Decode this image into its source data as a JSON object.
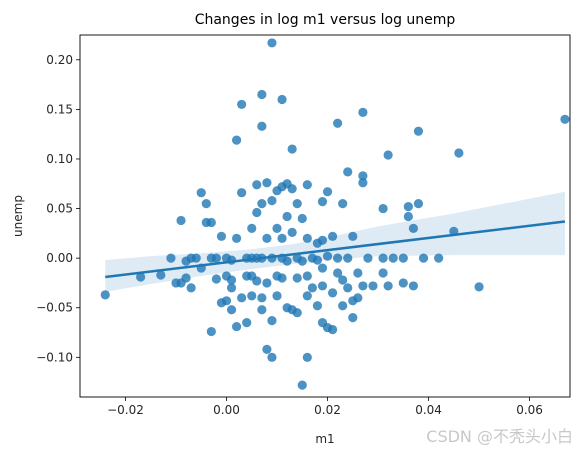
{
  "chart_data": {
    "type": "scatter",
    "title": "Changes in log m1 versus log unemp",
    "xlabel": "m1",
    "ylabel": "unemp",
    "xlim": [
      -0.029,
      0.068
    ],
    "ylim": [
      -0.14,
      0.225
    ],
    "xticks": [
      -0.02,
      0.0,
      0.02,
      0.04,
      0.06
    ],
    "xtick_labels": [
      "−0.02",
      "0.00",
      "0.02",
      "0.04",
      "0.06"
    ],
    "yticks": [
      -0.1,
      -0.05,
      0.0,
      0.05,
      0.1,
      0.15,
      0.2
    ],
    "ytick_labels": [
      "−0.10",
      "−0.05",
      "0.00",
      "0.05",
      "0.10",
      "0.15",
      "0.20"
    ],
    "grid": false,
    "point_color": "#1f77b4",
    "regression_line": {
      "x": [
        -0.024,
        0.067
      ],
      "y": [
        -0.019,
        0.037
      ]
    },
    "confidence_band": {
      "x": [
        -0.024,
        -0.015,
        -0.005,
        0.005,
        0.013,
        0.02,
        0.03,
        0.045,
        0.067
      ],
      "upper": [
        -0.002,
        0.002,
        0.005,
        0.009,
        0.014,
        0.021,
        0.032,
        0.045,
        0.067
      ],
      "lower": [
        -0.034,
        -0.026,
        -0.018,
        -0.011,
        -0.006,
        -0.002,
        0.002,
        0.003,
        0.003
      ]
    },
    "points": [
      [
        -0.024,
        -0.037
      ],
      [
        -0.017,
        -0.019
      ],
      [
        -0.013,
        -0.017
      ],
      [
        -0.011,
        0.0
      ],
      [
        -0.01,
        -0.025
      ],
      [
        -0.009,
        0.038
      ],
      [
        -0.009,
        -0.025
      ],
      [
        -0.008,
        -0.003
      ],
      [
        -0.008,
        -0.02
      ],
      [
        -0.007,
        0.0
      ],
      [
        -0.007,
        -0.03
      ],
      [
        -0.006,
        0.0
      ],
      [
        -0.005,
        0.066
      ],
      [
        -0.005,
        -0.01
      ],
      [
        -0.004,
        0.055
      ],
      [
        -0.004,
        0.036
      ],
      [
        -0.003,
        0.036
      ],
      [
        -0.003,
        0.0
      ],
      [
        -0.003,
        -0.074
      ],
      [
        -0.002,
        -0.021
      ],
      [
        -0.002,
        0.0
      ],
      [
        -0.001,
        0.022
      ],
      [
        -0.001,
        -0.045
      ],
      [
        0.0,
        0.0
      ],
      [
        0.0,
        -0.018
      ],
      [
        0.0,
        -0.043
      ],
      [
        0.001,
        -0.022
      ],
      [
        0.001,
        -0.002
      ],
      [
        0.001,
        -0.03
      ],
      [
        0.001,
        -0.052
      ],
      [
        0.002,
        0.119
      ],
      [
        0.002,
        0.02
      ],
      [
        0.002,
        -0.069
      ],
      [
        0.003,
        0.155
      ],
      [
        0.003,
        0.066
      ],
      [
        0.003,
        -0.04
      ],
      [
        0.004,
        -0.018
      ],
      [
        0.004,
        0.0
      ],
      [
        0.004,
        -0.065
      ],
      [
        0.005,
        0.03
      ],
      [
        0.005,
        0.0
      ],
      [
        0.005,
        -0.018
      ],
      [
        0.005,
        -0.038
      ],
      [
        0.006,
        0.074
      ],
      [
        0.006,
        0.046
      ],
      [
        0.006,
        0.0
      ],
      [
        0.006,
        -0.023
      ],
      [
        0.007,
        0.165
      ],
      [
        0.007,
        0.133
      ],
      [
        0.007,
        0.055
      ],
      [
        0.007,
        0.0
      ],
      [
        0.007,
        -0.04
      ],
      [
        0.007,
        -0.052
      ],
      [
        0.008,
        0.076
      ],
      [
        0.008,
        0.02
      ],
      [
        0.008,
        -0.025
      ],
      [
        0.008,
        -0.092
      ],
      [
        0.009,
        0.217
      ],
      [
        0.009,
        0.058
      ],
      [
        0.009,
        0.0
      ],
      [
        0.009,
        -0.063
      ],
      [
        0.009,
        -0.1
      ],
      [
        0.01,
        0.068
      ],
      [
        0.01,
        0.03
      ],
      [
        0.01,
        -0.018
      ],
      [
        0.01,
        -0.038
      ],
      [
        0.011,
        0.16
      ],
      [
        0.011,
        0.072
      ],
      [
        0.011,
        0.02
      ],
      [
        0.011,
        0.0
      ],
      [
        0.011,
        -0.02
      ],
      [
        0.012,
        0.075
      ],
      [
        0.012,
        0.042
      ],
      [
        0.012,
        -0.003
      ],
      [
        0.012,
        -0.05
      ],
      [
        0.013,
        0.11
      ],
      [
        0.013,
        0.07
      ],
      [
        0.013,
        0.026
      ],
      [
        0.013,
        -0.052
      ],
      [
        0.014,
        0.055
      ],
      [
        0.014,
        0.0
      ],
      [
        0.014,
        -0.02
      ],
      [
        0.014,
        -0.055
      ],
      [
        0.015,
        0.04
      ],
      [
        0.015,
        -0.003
      ],
      [
        0.015,
        -0.128
      ],
      [
        0.016,
        0.074
      ],
      [
        0.016,
        0.02
      ],
      [
        0.016,
        -0.018
      ],
      [
        0.016,
        -0.038
      ],
      [
        0.016,
        -0.1
      ],
      [
        0.017,
        0.0
      ],
      [
        0.017,
        -0.03
      ],
      [
        0.018,
        0.015
      ],
      [
        0.018,
        -0.002
      ],
      [
        0.018,
        -0.048
      ],
      [
        0.019,
        0.057
      ],
      [
        0.019,
        0.018
      ],
      [
        0.019,
        -0.01
      ],
      [
        0.019,
        -0.028
      ],
      [
        0.019,
        -0.065
      ],
      [
        0.02,
        0.067
      ],
      [
        0.02,
        0.002
      ],
      [
        0.02,
        -0.07
      ],
      [
        0.021,
        0.022
      ],
      [
        0.021,
        -0.035
      ],
      [
        0.021,
        -0.072
      ],
      [
        0.022,
        0.136
      ],
      [
        0.022,
        0.0
      ],
      [
        0.022,
        -0.015
      ],
      [
        0.023,
        0.055
      ],
      [
        0.023,
        -0.022
      ],
      [
        0.023,
        -0.048
      ],
      [
        0.024,
        0.087
      ],
      [
        0.024,
        0.0
      ],
      [
        0.024,
        -0.03
      ],
      [
        0.025,
        0.022
      ],
      [
        0.025,
        -0.043
      ],
      [
        0.025,
        -0.06
      ],
      [
        0.026,
        -0.015
      ],
      [
        0.026,
        -0.04
      ],
      [
        0.027,
        0.147
      ],
      [
        0.027,
        0.083
      ],
      [
        0.027,
        0.076
      ],
      [
        0.027,
        -0.028
      ],
      [
        0.028,
        0.0
      ],
      [
        0.029,
        -0.028
      ],
      [
        0.031,
        0.05
      ],
      [
        0.031,
        0.0
      ],
      [
        0.031,
        -0.015
      ],
      [
        0.032,
        0.104
      ],
      [
        0.032,
        -0.028
      ],
      [
        0.033,
        0.0
      ],
      [
        0.035,
        0.0
      ],
      [
        0.035,
        -0.025
      ],
      [
        0.036,
        0.052
      ],
      [
        0.036,
        0.042
      ],
      [
        0.037,
        0.03
      ],
      [
        0.037,
        -0.028
      ],
      [
        0.038,
        0.128
      ],
      [
        0.038,
        0.055
      ],
      [
        0.039,
        0.0
      ],
      [
        0.042,
        0.0
      ],
      [
        0.045,
        0.027
      ],
      [
        0.046,
        0.106
      ],
      [
        0.05,
        -0.029
      ],
      [
        0.067,
        0.14
      ]
    ]
  },
  "watermark": {
    "text": "CSDN @不秃头小白"
  }
}
